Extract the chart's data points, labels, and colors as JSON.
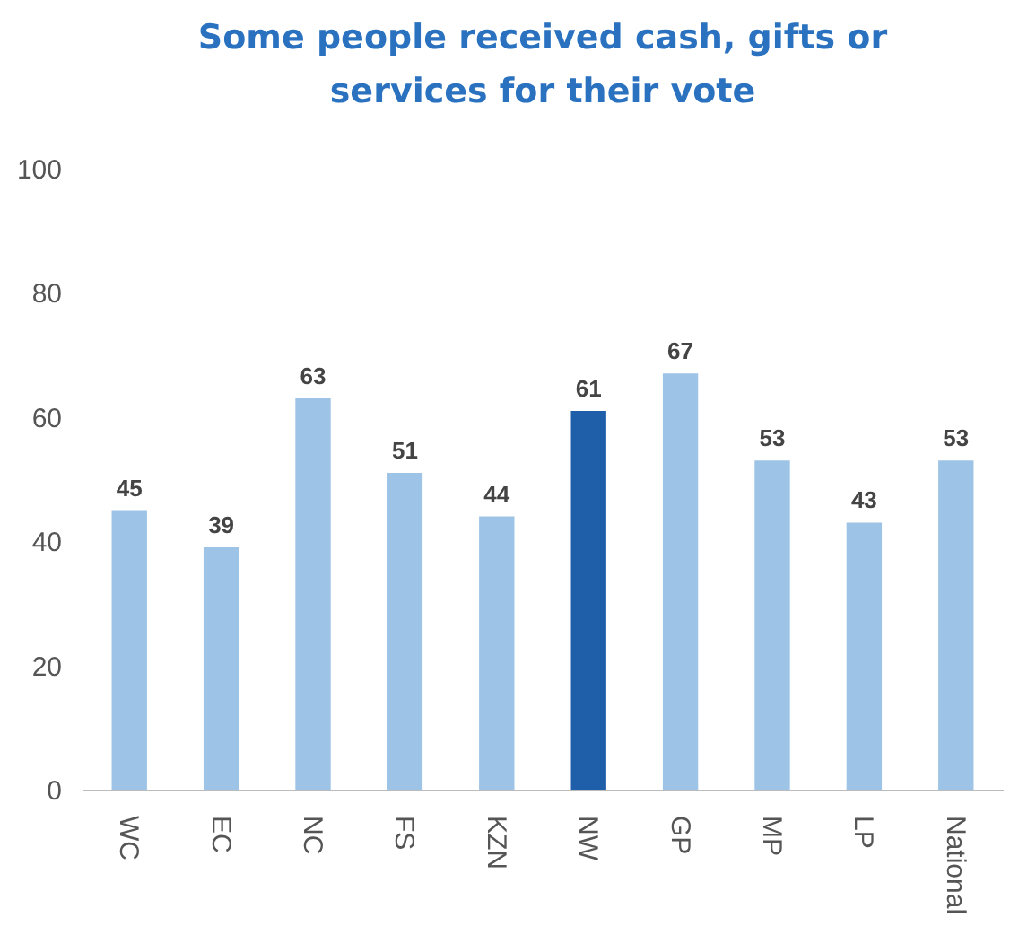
{
  "chart_data": {
    "type": "bar",
    "title": "Some people received cash, gifts or services for their vote",
    "categories": [
      "WC",
      "EC",
      "NC",
      "FS",
      "KZN",
      "NW",
      "GP",
      "MP",
      "LP",
      "National"
    ],
    "values": [
      45,
      39,
      63,
      51,
      44,
      61,
      67,
      53,
      43,
      53
    ],
    "colors": [
      "#9dc3e6",
      "#9dc3e6",
      "#9dc3e6",
      "#9dc3e6",
      "#9dc3e6",
      "#1f5ea8",
      "#9dc3e6",
      "#9dc3e6",
      "#9dc3e6",
      "#9dc3e6"
    ],
    "ylim": [
      0,
      100
    ],
    "yticks": [
      0,
      20,
      40,
      60,
      80,
      100
    ],
    "data_labels": true
  }
}
